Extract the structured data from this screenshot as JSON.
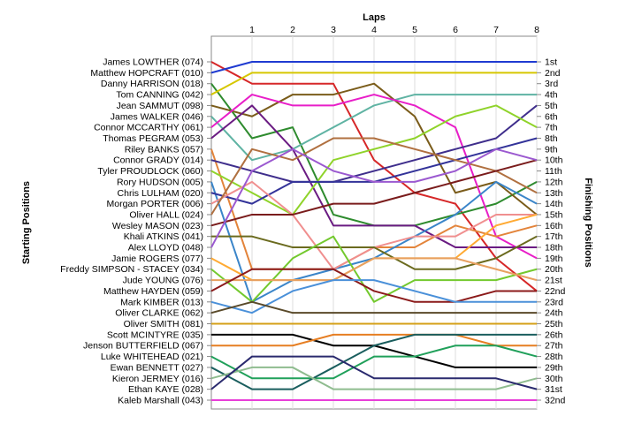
{
  "chart_data": {
    "type": "line",
    "title": "",
    "xlabel": "Laps",
    "ylabel": "Starting Positions",
    "y2label": "Finishing Positions",
    "laps": [
      0,
      1,
      2,
      3,
      4,
      5,
      6,
      7,
      8
    ],
    "lap_tick_labels": [
      "1",
      "2",
      "3",
      "4",
      "5",
      "6",
      "7",
      "8"
    ],
    "position_range": [
      1,
      32
    ],
    "grid": true,
    "legend": "none",
    "finishing_labels": [
      "1st",
      "2nd",
      "3rd",
      "4th",
      "5th",
      "6th",
      "7th",
      "8th",
      "9th",
      "10th",
      "11th",
      "12th",
      "13th",
      "14th",
      "15th",
      "16th",
      "17th",
      "18th",
      "19th",
      "20th",
      "21st",
      "22nd",
      "23rd",
      "24th",
      "25th",
      "26th",
      "27th",
      "28th",
      "29th",
      "30th",
      "31st",
      "32nd"
    ],
    "series": [
      {
        "name": "James LOWTHER (074)",
        "color": "#d62728",
        "positions": [
          1,
          3,
          3,
          3,
          10,
          13,
          14,
          19,
          22
        ]
      },
      {
        "name": "Matthew HOPCRAFT (010)",
        "color": "#1f3bd1",
        "positions": [
          2,
          1,
          1,
          1,
          1,
          1,
          1,
          1,
          1
        ]
      },
      {
        "name": "Danny HARRISON (018)",
        "color": "#2e8b2e",
        "positions": [
          3,
          8,
          7,
          15,
          16,
          16,
          15,
          14,
          12
        ]
      },
      {
        "name": "Tom CANNING (042)",
        "color": "#d6c700",
        "positions": [
          4,
          2,
          2,
          2,
          2,
          2,
          2,
          2,
          2
        ]
      },
      {
        "name": "Jean SAMMUT (098)",
        "color": "#7a5c1a",
        "positions": [
          5,
          6,
          4,
          4,
          3,
          6,
          13,
          12,
          15
        ]
      },
      {
        "name": "James WALKER (046)",
        "color": "#5fb3a3",
        "positions": [
          6,
          10,
          9,
          7,
          5,
          4,
          4,
          4,
          4
        ]
      },
      {
        "name": "Connor MCCARTHY (061)",
        "color": "#e81ec8",
        "positions": [
          7,
          4,
          5,
          5,
          4,
          5,
          7,
          17,
          19
        ]
      },
      {
        "name": "Thomas PEGRAM (053)",
        "color": "#6a1b82",
        "positions": [
          8,
          5,
          9,
          16,
          16,
          16,
          18,
          18,
          18
        ]
      },
      {
        "name": "Riley BANKS (057)",
        "color": "#e3843b",
        "positions": [
          9,
          20,
          20,
          20,
          18,
          18,
          16,
          17,
          16
        ]
      },
      {
        "name": "Connor GRADY (014)",
        "color": "#3f2e8c",
        "positions": [
          10,
          11,
          12,
          12,
          11,
          10,
          9,
          8,
          5
        ]
      },
      {
        "name": "Tyler PROUDLOCK (060)",
        "color": "#8fd32a",
        "positions": [
          11,
          13,
          15,
          10,
          9,
          8,
          6,
          5,
          7
        ]
      },
      {
        "name": "Rory HUDSON (005)",
        "color": "#3a85c9",
        "positions": [
          12,
          23,
          21,
          20,
          19,
          17,
          15,
          12,
          14
        ]
      },
      {
        "name": "Chris LULHAM (020)",
        "color": "#333399",
        "positions": [
          13,
          14,
          12,
          12,
          12,
          11,
          10,
          9,
          8
        ]
      },
      {
        "name": "Morgan PORTER (006)",
        "color": "#f08f8f",
        "positions": [
          14,
          12,
          15,
          20,
          18,
          17,
          17,
          15,
          15
        ]
      },
      {
        "name": "Oliver HALL (024)",
        "color": "#b07040",
        "positions": [
          15,
          9,
          10,
          8,
          8,
          9,
          10,
          11,
          13
        ]
      },
      {
        "name": "Wesley MASON (023)",
        "color": "#7a1c1c",
        "positions": [
          16,
          15,
          15,
          14,
          14,
          13,
          12,
          11,
          10
        ]
      },
      {
        "name": "Khali ATKINS (041)",
        "color": "#6b6b1f",
        "positions": [
          17,
          17,
          18,
          18,
          18,
          20,
          20,
          19,
          17
        ]
      },
      {
        "name": "Alex LLOYD (048)",
        "color": "#9b59d0",
        "positions": [
          18,
          11,
          9,
          11,
          12,
          12,
          11,
          9,
          10
        ]
      },
      {
        "name": "Jamie ROGERS (077)",
        "color": "#ffaa33",
        "positions": [
          19,
          21,
          21,
          21,
          19,
          19,
          19,
          16,
          15
        ]
      },
      {
        "name": "Freddy SIMPSON - STACEY (034)",
        "color": "#73c92e",
        "positions": [
          20,
          23,
          19,
          17,
          23,
          21,
          21,
          21,
          20
        ]
      },
      {
        "name": "Jude YOUNG (076)",
        "color": "#e8a060",
        "positions": [
          21,
          21,
          21,
          21,
          19,
          19,
          19,
          20,
          21
        ]
      },
      {
        "name": "Matthew HAYDEN (059)",
        "color": "#8b1a1a",
        "positions": [
          22,
          20,
          20,
          20,
          22,
          23,
          23,
          22,
          22
        ]
      },
      {
        "name": "Mark KIMBER (013)",
        "color": "#4a90d9",
        "positions": [
          23,
          24,
          22,
          21,
          21,
          22,
          23,
          23,
          23
        ]
      },
      {
        "name": "Oliver CLARKE (062)",
        "color": "#5a4a2a",
        "positions": [
          24,
          23,
          24,
          24,
          24,
          24,
          24,
          24,
          24
        ]
      },
      {
        "name": "Oliver SMITH (081)",
        "color": "#d4a017",
        "positions": [
          25,
          25,
          25,
          25,
          25,
          25,
          25,
          25,
          25
        ]
      },
      {
        "name": "Scott MCINTYRE (035)",
        "color": "#000000",
        "positions": [
          26,
          26,
          26,
          27,
          27,
          28,
          29,
          29,
          29
        ]
      },
      {
        "name": "Jenson BUTTERFIELD (067)",
        "color": "#e67e22",
        "positions": [
          27,
          27,
          27,
          26,
          26,
          26,
          26,
          27,
          27
        ]
      },
      {
        "name": "Luke WHITEHEAD (021)",
        "color": "#20a05a",
        "positions": [
          28,
          30,
          30,
          30,
          28,
          28,
          27,
          27,
          28
        ]
      },
      {
        "name": "Ewan BENNETT (027)",
        "color": "#1a5e5e",
        "positions": [
          29,
          31,
          31,
          29,
          27,
          26,
          26,
          26,
          26
        ]
      },
      {
        "name": "Kieron JERMEY (016)",
        "color": "#8fbc8f",
        "positions": [
          30,
          29,
          29,
          31,
          31,
          31,
          31,
          31,
          30
        ]
      },
      {
        "name": "Ethan KAYE (028)",
        "color": "#2a2a6e",
        "positions": [
          31,
          28,
          28,
          28,
          30,
          30,
          30,
          30,
          31
        ]
      },
      {
        "name": "Kaleb Marshall (043)",
        "color": "#e83ed8",
        "positions": [
          32,
          32,
          32,
          32,
          32,
          32,
          32,
          32,
          32
        ]
      }
    ]
  }
}
